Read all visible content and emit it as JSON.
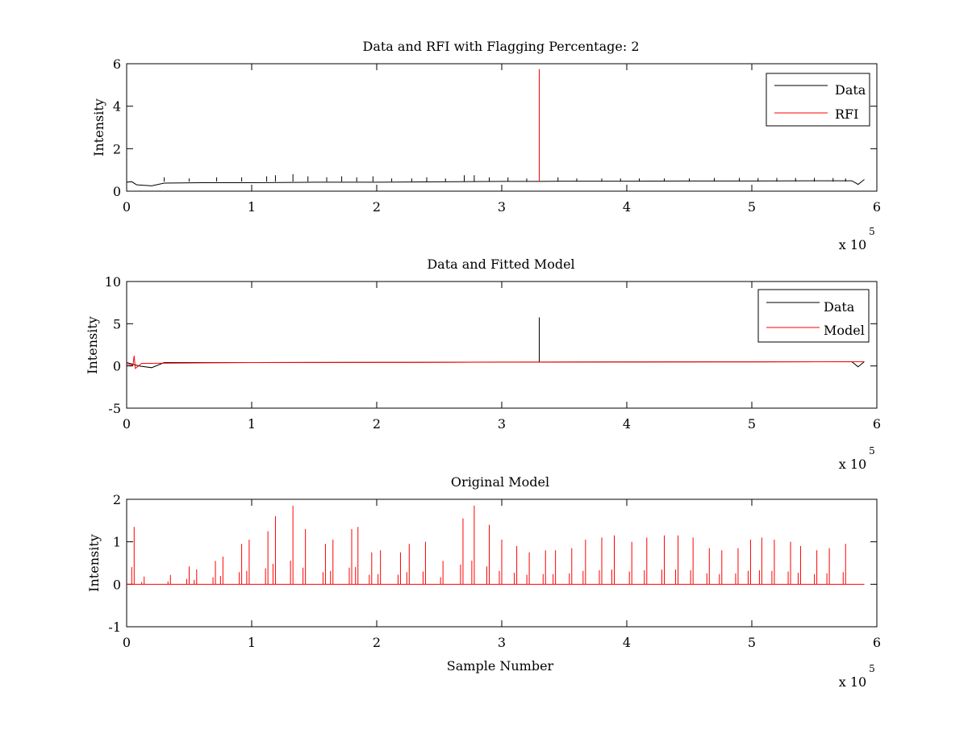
{
  "chart_data": [
    {
      "type": "line",
      "title": "Data and RFI with Flagging Percentage: 2",
      "ylabel": "Intensity",
      "xlabel": "",
      "xlim": [
        0,
        600000
      ],
      "ylim": [
        0,
        6
      ],
      "x_ticks": [
        "0",
        "1",
        "2",
        "3",
        "4",
        "5",
        "6"
      ],
      "y_ticks": [
        "0",
        "2",
        "4",
        "6"
      ],
      "x_exponent_base": "x 10",
      "x_exponent_power": "5",
      "legend": {
        "placement": "top-right",
        "entries": [
          {
            "label": "Data",
            "color": "#000000"
          },
          {
            "label": "RFI",
            "color": "#ff0000"
          }
        ]
      },
      "series": [
        {
          "name": "Data",
          "color": "#000000",
          "x": [
            0,
            4000,
            8000,
            20000,
            30000,
            60000,
            100000,
            150000,
            200000,
            250000,
            300000,
            329000,
            331000,
            350000,
            400000,
            450000,
            500000,
            550000,
            580000,
            585000,
            590000
          ],
          "y": [
            0.42,
            0.45,
            0.3,
            0.25,
            0.38,
            0.4,
            0.4,
            0.42,
            0.42,
            0.44,
            0.46,
            0.46,
            0.46,
            0.47,
            0.47,
            0.48,
            0.48,
            0.49,
            0.49,
            0.32,
            0.55
          ],
          "spikes": {
            "x": [
              30000,
              50000,
              72000,
              92000,
              112000,
              119000,
              133000,
              145000,
              160000,
              172000,
              184000,
              197000,
              212000,
              228000,
              240000,
              255000,
              270000,
              278000,
              290000,
              305000,
              320000,
              345000,
              360000,
              380000,
              395000,
              410000,
              430000,
              450000,
              470000,
              490000,
              505000,
              520000,
              535000,
              550000,
              565000,
              575000
            ],
            "y": [
              0.65,
              0.6,
              0.65,
              0.65,
              0.7,
              0.75,
              0.8,
              0.7,
              0.65,
              0.7,
              0.65,
              0.7,
              0.6,
              0.6,
              0.65,
              0.6,
              0.75,
              0.75,
              0.65,
              0.65,
              0.6,
              0.65,
              0.6,
              0.6,
              0.6,
              0.6,
              0.6,
              0.6,
              0.62,
              0.62,
              0.62,
              0.62,
              0.62,
              0.62,
              0.62,
              0.6
            ]
          }
        },
        {
          "name": "RFI",
          "color": "#ff0000",
          "x": [
            330000
          ],
          "y": [
            5.75
          ]
        }
      ]
    },
    {
      "type": "line",
      "title": "Data and Fitted Model",
      "ylabel": "Intensity",
      "xlabel": "",
      "xlim": [
        0,
        600000
      ],
      "ylim": [
        -5,
        10
      ],
      "x_ticks": [
        "0",
        "1",
        "2",
        "3",
        "4",
        "5",
        "6"
      ],
      "y_ticks": [
        "-5",
        "0",
        "5",
        "10"
      ],
      "x_exponent_base": "x 10",
      "x_exponent_power": "5",
      "legend": {
        "placement": "top-right",
        "entries": [
          {
            "label": "Data",
            "color": "#000000"
          },
          {
            "label": "Model",
            "color": "#ff0000"
          }
        ]
      },
      "series": [
        {
          "name": "Data",
          "color": "#000000",
          "x": [
            0,
            5000,
            10000,
            20000,
            30000,
            100000,
            200000,
            300000,
            329000,
            331000,
            400000,
            500000,
            580000,
            585000,
            590000
          ],
          "y": [
            0.4,
            0.2,
            0.0,
            -0.2,
            0.4,
            0.4,
            0.42,
            0.46,
            0.46,
            0.46,
            0.47,
            0.48,
            0.49,
            -0.1,
            0.5
          ],
          "spike": {
            "x": 330000,
            "y": 5.75
          }
        },
        {
          "name": "Model",
          "color": "#ff0000",
          "x": [
            0,
            5000,
            6000,
            7000,
            12000,
            100000,
            200000,
            300000,
            400000,
            500000,
            590000
          ],
          "y": [
            0.2,
            0.1,
            1.2,
            -0.3,
            0.3,
            0.4,
            0.42,
            0.45,
            0.47,
            0.48,
            0.5
          ]
        }
      ]
    },
    {
      "type": "line",
      "title": "Original Model",
      "ylabel": "Intensity",
      "xlabel": "Sample Number",
      "xlim": [
        0,
        600000
      ],
      "ylim": [
        -1,
        2
      ],
      "x_ticks": [
        "0",
        "1",
        "2",
        "3",
        "4",
        "5",
        "6"
      ],
      "y_ticks": [
        "-1",
        "0",
        "1",
        "2"
      ],
      "x_exponent_base": "x 10",
      "x_exponent_power": "5",
      "series": [
        {
          "name": "Model",
          "color": "#ff0000",
          "peaks_x": [
            6000,
            14000,
            35000,
            50000,
            56000,
            71000,
            77000,
            92000,
            98000,
            113000,
            119000,
            133000,
            143000,
            159000,
            165000,
            180000,
            185000,
            196000,
            203000,
            219000,
            226000,
            239000,
            253000,
            269000,
            278000,
            290000,
            300000,
            312000,
            322000,
            335000,
            343000,
            356000,
            367000,
            380000,
            390000,
            404000,
            416000,
            430000,
            441000,
            453000,
            466000,
            476000,
            489000,
            499000,
            508000,
            518000,
            531000,
            539000,
            552000,
            562000,
            575000
          ],
          "peaks_y": [
            1.35,
            0.18,
            0.22,
            0.42,
            0.35,
            0.55,
            0.65,
            0.95,
            1.05,
            1.25,
            1.6,
            1.85,
            1.3,
            0.95,
            1.05,
            1.3,
            1.35,
            0.75,
            0.8,
            0.75,
            0.95,
            1.0,
            0.55,
            1.55,
            1.85,
            1.4,
            1.05,
            0.9,
            0.75,
            0.8,
            0.8,
            0.85,
            1.05,
            1.1,
            1.15,
            1.0,
            1.1,
            1.15,
            1.15,
            1.1,
            0.85,
            0.8,
            0.85,
            1.05,
            1.1,
            1.05,
            1.0,
            0.9,
            0.8,
            0.85,
            0.95
          ]
        }
      ]
    }
  ]
}
